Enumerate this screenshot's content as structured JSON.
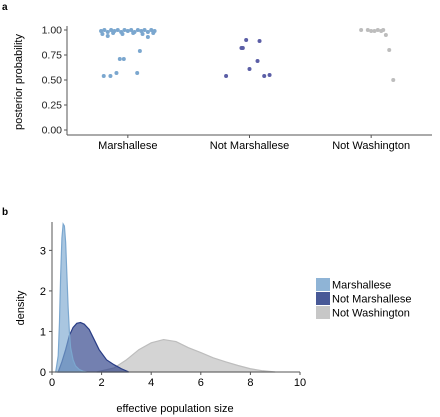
{
  "colors": {
    "marshallese": "#7ba7cf",
    "not_marshallese": "#283c85",
    "not_washington": "#bdbdbd",
    "axis": "#555555"
  },
  "chart_data": [
    {
      "panel_label": "a",
      "type": "scatter",
      "ylabel": "posterior probability",
      "xlabel": "",
      "categories": [
        "Marshallese",
        "Not Marshallese",
        "Not Washington"
      ],
      "ylim": [
        0,
        1
      ],
      "yticks": [
        "0.00",
        "0.25",
        "0.50",
        "0.75",
        "1.00"
      ],
      "grid": false,
      "series": [
        {
          "category": "Marshallese",
          "color": "#7ba7cf",
          "points": [
            [
              -0.4,
              0.99
            ],
            [
              -0.35,
              1.0
            ],
            [
              -0.3,
              0.98
            ],
            [
              -0.25,
              1.0
            ],
            [
              -0.2,
              0.99
            ],
            [
              -0.15,
              1.0
            ],
            [
              -0.1,
              0.98
            ],
            [
              -0.05,
              1.0
            ],
            [
              0.0,
              0.99
            ],
            [
              0.05,
              1.0
            ],
            [
              0.1,
              0.98
            ],
            [
              0.15,
              1.0
            ],
            [
              0.2,
              0.99
            ],
            [
              0.25,
              1.0
            ],
            [
              0.3,
              0.98
            ],
            [
              0.35,
              1.0
            ],
            [
              0.4,
              0.99
            ],
            [
              -0.38,
              0.96
            ],
            [
              -0.22,
              0.97
            ],
            [
              -0.08,
              0.96
            ],
            [
              0.08,
              0.97
            ],
            [
              0.22,
              0.96
            ],
            [
              0.38,
              0.97
            ],
            [
              -0.3,
              0.94
            ],
            [
              0.3,
              0.93
            ],
            [
              -0.12,
              0.71
            ],
            [
              -0.06,
              0.71
            ],
            [
              0.18,
              0.79
            ],
            [
              -0.36,
              0.54
            ],
            [
              -0.26,
              0.54
            ],
            [
              -0.17,
              0.57
            ],
            [
              0.14,
              0.57
            ]
          ]
        },
        {
          "category": "Not Marshallese",
          "color": "#5b5ea6",
          "points": [
            [
              -0.35,
              0.54
            ],
            [
              -0.1,
              0.82
            ],
            [
              -0.05,
              0.9
            ],
            [
              0.0,
              0.61
            ],
            [
              0.12,
              0.69
            ],
            [
              0.15,
              0.89
            ],
            [
              0.22,
              0.54
            ],
            [
              0.3,
              0.55
            ],
            [
              -0.12,
              0.82
            ]
          ]
        },
        {
          "category": "Not Washington",
          "color": "#bdbdbd",
          "points": [
            [
              -0.15,
              1.0
            ],
            [
              -0.05,
              1.0
            ],
            [
              0.0,
              0.99
            ],
            [
              0.05,
              0.99
            ],
            [
              0.1,
              1.0
            ],
            [
              0.15,
              0.99
            ],
            [
              0.18,
              1.0
            ],
            [
              0.22,
              0.95
            ],
            [
              0.27,
              0.8
            ],
            [
              0.33,
              0.5
            ]
          ]
        }
      ]
    },
    {
      "panel_label": "b",
      "type": "area",
      "xlabel": "effective population size",
      "ylabel": "density",
      "xlim": [
        0,
        10
      ],
      "ylim": [
        0,
        3.7
      ],
      "xticks": [
        "0",
        "2",
        "4",
        "6",
        "8",
        "10"
      ],
      "yticks": [
        "0",
        "1",
        "2",
        "3"
      ],
      "grid": false,
      "legend_position": "right",
      "series": [
        {
          "name": "Not Washington",
          "color": "#bdbdbd",
          "x": [
            1.8,
            2.5,
            3.0,
            3.5,
            4.0,
            4.5,
            5.0,
            5.5,
            6.0,
            6.5,
            7.0,
            7.5,
            8.0,
            8.5,
            9.0
          ],
          "y": [
            0.0,
            0.1,
            0.3,
            0.55,
            0.72,
            0.8,
            0.75,
            0.6,
            0.48,
            0.35,
            0.25,
            0.16,
            0.08,
            0.03,
            0.0
          ]
        },
        {
          "name": "Not Marshallese",
          "color": "#283c85",
          "x": [
            0.25,
            0.4,
            0.55,
            0.7,
            0.85,
            1.0,
            1.15,
            1.3,
            1.5,
            1.7,
            1.9,
            2.2,
            2.5,
            2.8,
            3.1
          ],
          "y": [
            0.0,
            0.25,
            0.55,
            0.9,
            1.1,
            1.2,
            1.22,
            1.18,
            1.05,
            0.8,
            0.55,
            0.3,
            0.18,
            0.08,
            0.0
          ]
        },
        {
          "name": "Marshallese",
          "color": "#7ba7cf",
          "x": [
            0.15,
            0.25,
            0.3,
            0.35,
            0.4,
            0.45,
            0.5,
            0.55,
            0.6,
            0.65,
            0.7,
            0.75,
            0.85,
            0.95,
            1.1,
            1.25,
            1.4
          ],
          "y": [
            0.0,
            0.4,
            1.2,
            2.4,
            3.3,
            3.65,
            3.6,
            3.2,
            2.4,
            1.6,
            1.0,
            0.6,
            0.3,
            0.15,
            0.06,
            0.02,
            0.0
          ]
        }
      ],
      "legend": [
        "Marshallese",
        "Not Marshallese",
        "Not Washington"
      ]
    }
  ]
}
